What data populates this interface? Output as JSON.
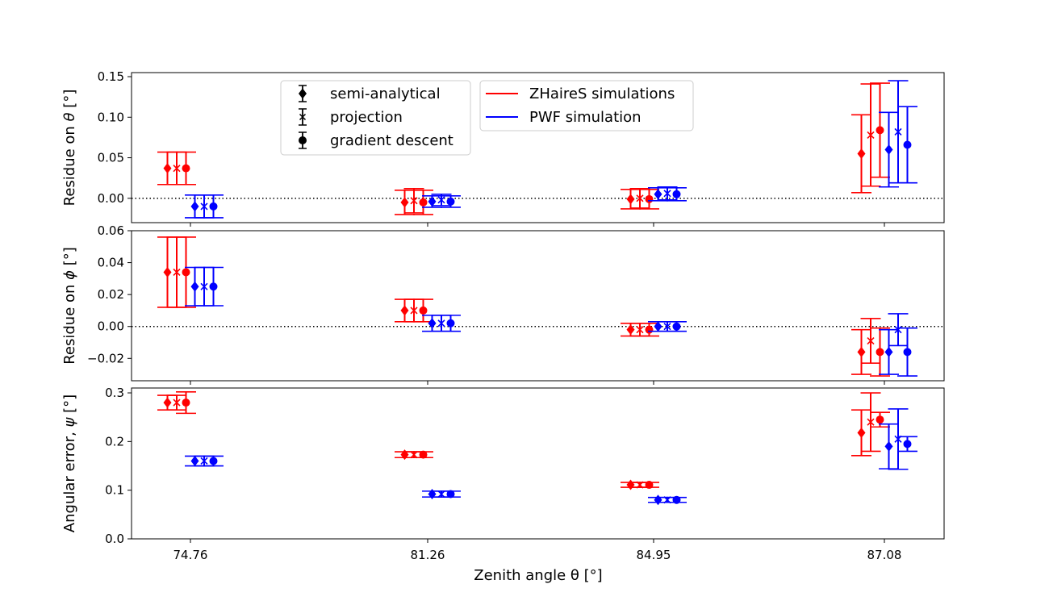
{
  "chart_data": {
    "type": "errorbar",
    "xlabel": "Zenith angle θ [°]",
    "categories": [
      "74.76",
      "81.26",
      "84.95",
      "87.08"
    ],
    "colors": {
      "ZHaireS simulations": "#ff0000",
      "PWF simulation": "#0000ff"
    },
    "method_legend": [
      {
        "label": "semi-analytical",
        "marker": "diamond"
      },
      {
        "label": "projection",
        "marker": "x"
      },
      {
        "label": "gradient descent",
        "marker": "circle"
      }
    ],
    "sim_legend": [
      {
        "label": "ZHaireS simulations",
        "color": "#ff0000"
      },
      {
        "label": "PWF simulation",
        "color": "#0000ff"
      }
    ],
    "panels": [
      {
        "id": "theta",
        "ylabel_prefix": "Residue on ",
        "ylabel_symbol": "θ",
        "ylabel_suffix": " [°]",
        "ylim": [
          -0.03,
          0.155
        ],
        "yticks": [
          "0.15",
          "0.10",
          "0.05",
          "0.00"
        ],
        "ytick_values": [
          0.15,
          0.1,
          0.05,
          0.0
        ],
        "zero_line": true,
        "series": [
          {
            "sim": "ZHaireS simulations",
            "method": "semi-analytical",
            "values": [
              0.037,
              -0.005,
              -0.001,
              0.055
            ],
            "errors": [
              0.02,
              0.015,
              0.012,
              0.048
            ]
          },
          {
            "sim": "ZHaireS simulations",
            "method": "projection",
            "values": [
              0.037,
              -0.003,
              0.0,
              0.078
            ],
            "errors": [
              0.02,
              0.015,
              0.012,
              0.063
            ]
          },
          {
            "sim": "ZHaireS simulations",
            "method": "gradient descent",
            "values": [
              0.037,
              -0.005,
              -0.001,
              0.084
            ],
            "errors": [
              0.02,
              0.015,
              0.012,
              0.058
            ]
          },
          {
            "sim": "PWF simulation",
            "method": "semi-analytical",
            "values": [
              -0.01,
              -0.004,
              0.005,
              0.06
            ],
            "errors": [
              0.014,
              0.007,
              0.008,
              0.046
            ]
          },
          {
            "sim": "PWF simulation",
            "method": "projection",
            "values": [
              -0.01,
              -0.002,
              0.006,
              0.082
            ],
            "errors": [
              0.014,
              0.007,
              0.008,
              0.063
            ]
          },
          {
            "sim": "PWF simulation",
            "method": "gradient descent",
            "values": [
              -0.01,
              -0.004,
              0.005,
              0.066
            ],
            "errors": [
              0.014,
              0.007,
              0.008,
              0.047
            ]
          }
        ]
      },
      {
        "id": "phi",
        "ylabel_prefix": "Residue on ",
        "ylabel_symbol": "ϕ",
        "ylabel_suffix": " [°]",
        "ylim": [
          -0.034,
          0.06
        ],
        "yticks": [
          "0.06",
          "0.04",
          "0.02",
          "0.00",
          "−0.02"
        ],
        "ytick_values": [
          0.06,
          0.04,
          0.02,
          0.0,
          -0.02
        ],
        "zero_line": true,
        "series": [
          {
            "sim": "ZHaireS simulations",
            "method": "semi-analytical",
            "values": [
              0.034,
              0.01,
              -0.002,
              -0.016
            ],
            "errors": [
              0.022,
              0.007,
              0.004,
              0.014
            ]
          },
          {
            "sim": "ZHaireS simulations",
            "method": "projection",
            "values": [
              0.034,
              0.01,
              -0.002,
              -0.009
            ],
            "errors": [
              0.022,
              0.007,
              0.004,
              0.014
            ]
          },
          {
            "sim": "ZHaireS simulations",
            "method": "gradient descent",
            "values": [
              0.034,
              0.01,
              -0.002,
              -0.016
            ],
            "errors": [
              0.022,
              0.007,
              0.004,
              0.015
            ]
          },
          {
            "sim": "PWF simulation",
            "method": "semi-analytical",
            "values": [
              0.025,
              0.002,
              0.0,
              -0.016
            ],
            "errors": [
              0.012,
              0.005,
              0.003,
              0.014
            ]
          },
          {
            "sim": "PWF simulation",
            "method": "projection",
            "values": [
              0.025,
              0.002,
              0.0,
              -0.002
            ],
            "errors": [
              0.012,
              0.005,
              0.003,
              0.01
            ]
          },
          {
            "sim": "PWF simulation",
            "method": "gradient descent",
            "values": [
              0.025,
              0.002,
              0.0,
              -0.016
            ],
            "errors": [
              0.012,
              0.005,
              0.003,
              0.015
            ]
          }
        ]
      },
      {
        "id": "psi",
        "ylabel_prefix": "Angular error, ",
        "ylabel_symbol": "ψ",
        "ylabel_suffix": " [°]",
        "ylim": [
          0.0,
          0.31
        ],
        "yticks": [
          "0.3",
          "0.2",
          "0.1",
          "0.0"
        ],
        "ytick_values": [
          0.3,
          0.2,
          0.1,
          0.0
        ],
        "zero_line": false,
        "series": [
          {
            "sim": "ZHaireS simulations",
            "method": "semi-analytical",
            "values": [
              0.28,
              0.173,
              0.111,
              0.218
            ],
            "errors": [
              0.015,
              0.006,
              0.005,
              0.047
            ]
          },
          {
            "sim": "ZHaireS simulations",
            "method": "projection",
            "values": [
              0.28,
              0.173,
              0.111,
              0.24
            ],
            "errors": [
              0.015,
              0.006,
              0.005,
              0.06
            ]
          },
          {
            "sim": "ZHaireS simulations",
            "method": "gradient descent",
            "values": [
              0.28,
              0.173,
              0.111,
              0.245
            ],
            "errors": [
              0.022,
              0.006,
              0.005,
              0.015
            ]
          },
          {
            "sim": "PWF simulation",
            "method": "semi-analytical",
            "values": [
              0.16,
              0.092,
              0.08,
              0.19
            ],
            "errors": [
              0.01,
              0.006,
              0.005,
              0.046
            ]
          },
          {
            "sim": "PWF simulation",
            "method": "projection",
            "values": [
              0.16,
              0.092,
              0.08,
              0.205
            ],
            "errors": [
              0.01,
              0.006,
              0.005,
              0.062
            ]
          },
          {
            "sim": "PWF simulation",
            "method": "gradient descent",
            "values": [
              0.16,
              0.092,
              0.08,
              0.195
            ],
            "errors": [
              0.01,
              0.006,
              0.005,
              0.015
            ]
          }
        ]
      }
    ]
  }
}
